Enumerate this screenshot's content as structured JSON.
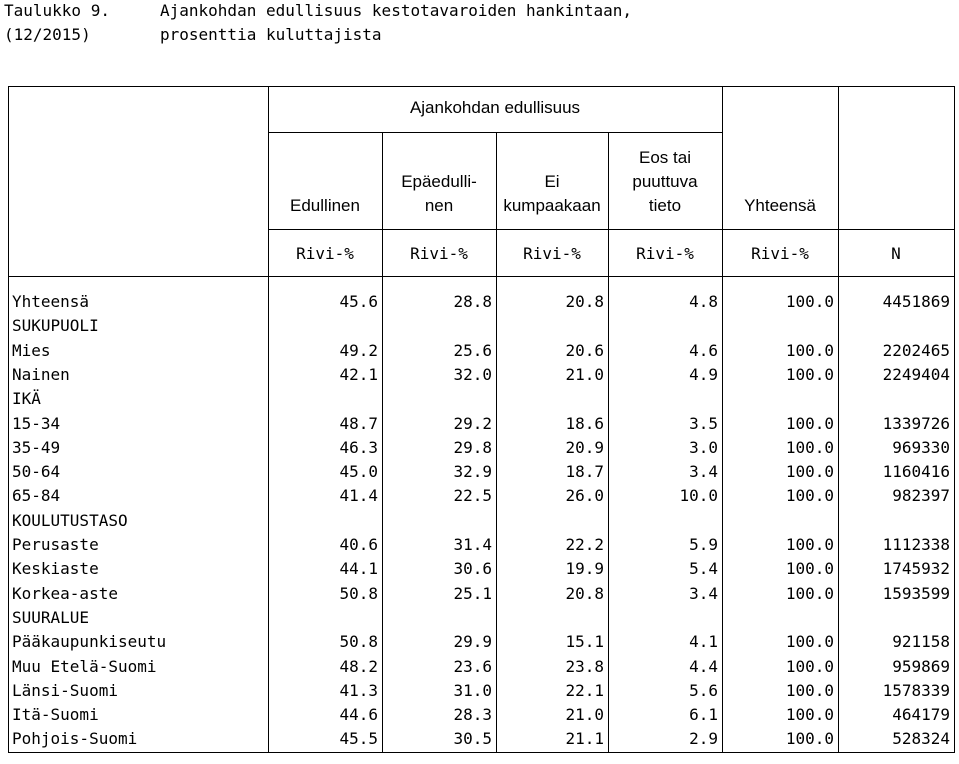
{
  "title": {
    "label_line1": "Taulukko 9.",
    "label_line2": "(12/2015)",
    "text_line1": "Ajankohdan edullisuus kestotavaroiden hankintaan,",
    "text_line2": "prosenttia kuluttajista"
  },
  "header": {
    "group_title": "Ajankohdan edullisuus",
    "columns": [
      {
        "name": "Edullinen"
      },
      {
        "name": "Epäedulli-\nnen"
      },
      {
        "name": "Ei\nkumpaakaan"
      },
      {
        "name": "Eos tai\npuuttuva\ntieto"
      },
      {
        "name": "Yhteensä"
      },
      {
        "name": ""
      }
    ],
    "units": [
      "Rivi-%",
      "Rivi-%",
      "Rivi-%",
      "Rivi-%",
      "Rivi-%",
      "N"
    ]
  },
  "rows": [
    {
      "label": "Yhteensä",
      "values": [
        "45.6",
        "28.8",
        "20.8",
        "4.8",
        "100.0",
        "4451869"
      ]
    },
    {
      "label": "SUKUPUOLI",
      "values": []
    },
    {
      "label": "Mies",
      "values": [
        "49.2",
        "25.6",
        "20.6",
        "4.6",
        "100.0",
        "2202465"
      ]
    },
    {
      "label": "Nainen",
      "values": [
        "42.1",
        "32.0",
        "21.0",
        "4.9",
        "100.0",
        "2249404"
      ]
    },
    {
      "label": "IKÄ",
      "values": []
    },
    {
      "label": "15-34",
      "values": [
        "48.7",
        "29.2",
        "18.6",
        "3.5",
        "100.0",
        "1339726"
      ]
    },
    {
      "label": "35-49",
      "values": [
        "46.3",
        "29.8",
        "20.9",
        "3.0",
        "100.0",
        "969330"
      ]
    },
    {
      "label": "50-64",
      "values": [
        "45.0",
        "32.9",
        "18.7",
        "3.4",
        "100.0",
        "1160416"
      ]
    },
    {
      "label": "65-84",
      "values": [
        "41.4",
        "22.5",
        "26.0",
        "10.0",
        "100.0",
        "982397"
      ]
    },
    {
      "label": "KOULUTUSTASO",
      "values": []
    },
    {
      "label": "Perusaste",
      "values": [
        "40.6",
        "31.4",
        "22.2",
        "5.9",
        "100.0",
        "1112338"
      ]
    },
    {
      "label": "Keskiaste",
      "values": [
        "44.1",
        "30.6",
        "19.9",
        "5.4",
        "100.0",
        "1745932"
      ]
    },
    {
      "label": "Korkea-aste",
      "values": [
        "50.8",
        "25.1",
        "20.8",
        "3.4",
        "100.0",
        "1593599"
      ]
    },
    {
      "label": "SUURALUE",
      "values": []
    },
    {
      "label": "Pääkaupunkiseutu",
      "values": [
        "50.8",
        "29.9",
        "15.1",
        "4.1",
        "100.0",
        "921158"
      ]
    },
    {
      "label": "Muu Etelä-Suomi",
      "values": [
        "48.2",
        "23.6",
        "23.8",
        "4.4",
        "100.0",
        "959869"
      ]
    },
    {
      "label": "Länsi-Suomi",
      "values": [
        "41.3",
        "31.0",
        "22.1",
        "5.6",
        "100.0",
        "1578339"
      ]
    },
    {
      "label": "Itä-Suomi",
      "values": [
        "44.6",
        "28.3",
        "21.0",
        "6.1",
        "100.0",
        "464179"
      ]
    },
    {
      "label": "Pohjois-Suomi",
      "values": [
        "45.5",
        "30.5",
        "21.1",
        "2.9",
        "100.0",
        "528324"
      ]
    }
  ]
}
